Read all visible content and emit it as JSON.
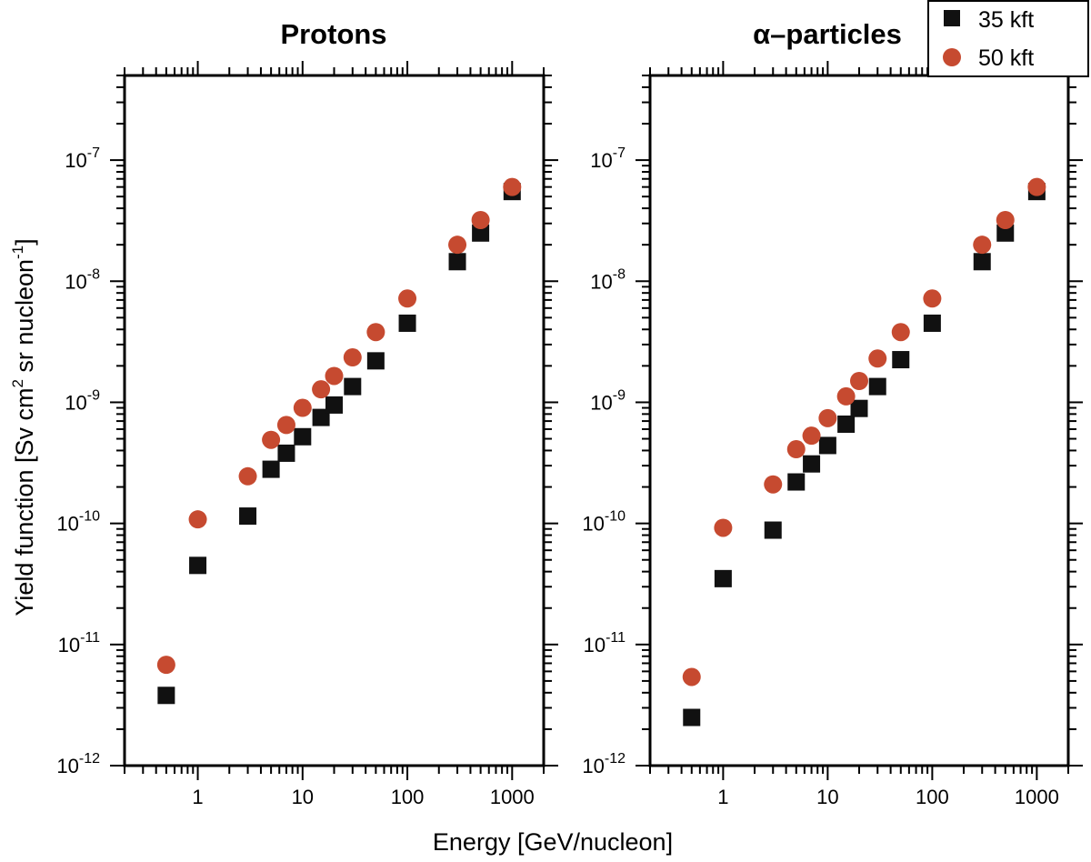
{
  "chart_data": {
    "type": "scatter",
    "xlabel": "Energy [GeV/nucleon]",
    "ylabel_main": "Yield function [Sv cm",
    "ylabel_sup1": "2",
    "ylabel_mid": " sr nucleon",
    "ylabel_sup2": "-1",
    "ylabel_end": "]",
    "xscale": "log",
    "yscale": "log",
    "xlim": [
      0.2,
      2000
    ],
    "ylim": [
      1e-12,
      5e-07
    ],
    "x_tick_labels": [
      "1",
      "10",
      "100",
      "1000"
    ],
    "y_tick_mantissa": "10",
    "y_tick_exponents": [
      "-12",
      "-11",
      "-10",
      "-9",
      "-8",
      "-7"
    ],
    "legend": {
      "position": "top-right",
      "entries": [
        {
          "label": "35 kft",
          "marker": "square",
          "color": "#111111"
        },
        {
          "label": "50 kft",
          "marker": "circle",
          "color": "#c64a30"
        }
      ]
    },
    "panels": [
      {
        "title": "Protons",
        "x": [
          0.5,
          1,
          3,
          5,
          7,
          10,
          15,
          20,
          30,
          50,
          100,
          300,
          500,
          1000
        ],
        "series": [
          {
            "name": "35 kft",
            "values": [
              3.8e-12,
              4.5e-11,
              1.15e-10,
              2.8e-10,
              3.8e-10,
              5.2e-10,
              7.5e-10,
              9.5e-10,
              1.35e-09,
              2.2e-09,
              4.5e-09,
              1.45e-08,
              2.5e-08,
              5.5e-08
            ]
          },
          {
            "name": "50 kft",
            "values": [
              6.8e-12,
              1.08e-10,
              2.45e-10,
              4.9e-10,
              6.5e-10,
              9e-10,
              1.28e-09,
              1.65e-09,
              2.35e-09,
              3.8e-09,
              7.2e-09,
              2e-08,
              3.2e-08,
              6e-08
            ]
          }
        ]
      },
      {
        "title": "α–particles",
        "x": [
          0.5,
          1,
          3,
          5,
          7,
          10,
          15,
          20,
          30,
          50,
          100,
          300,
          500,
          1000
        ],
        "series": [
          {
            "name": "35 kft",
            "values": [
              2.5e-12,
              3.5e-11,
              8.8e-11,
              2.2e-10,
              3.1e-10,
              4.4e-10,
              6.6e-10,
              8.9e-10,
              1.35e-09,
              2.25e-09,
              4.5e-09,
              1.45e-08,
              2.5e-08,
              5.5e-08
            ]
          },
          {
            "name": "50 kft",
            "values": [
              5.4e-12,
              9.2e-11,
              2.1e-10,
              4.1e-10,
              5.3e-10,
              7.4e-10,
              1.12e-09,
              1.5e-09,
              2.3e-09,
              3.8e-09,
              7.2e-09,
              2e-08,
              3.2e-08,
              6e-08
            ]
          }
        ]
      }
    ]
  }
}
